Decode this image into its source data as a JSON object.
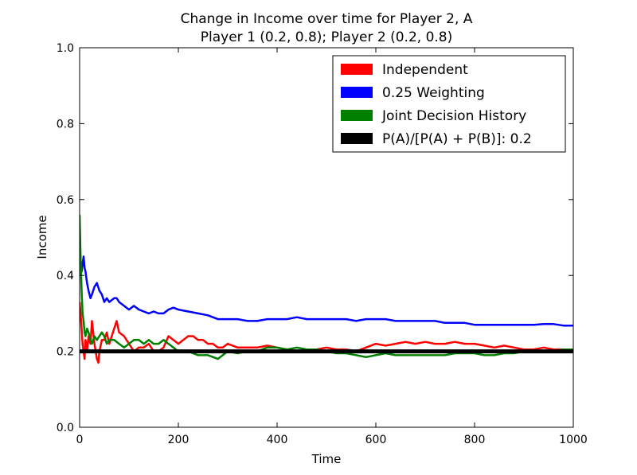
{
  "chart_data": {
    "type": "line",
    "title": "Change in Income over time for Player 2, A",
    "subtitle": "Player 1 (0.2, 0.8); Player 2 (0.2, 0.8)",
    "xlabel": "Time",
    "ylabel": "Income",
    "xlim": [
      0,
      1000
    ],
    "ylim": [
      0.0,
      1.0
    ],
    "xticks": [
      "0",
      "200",
      "400",
      "600",
      "800",
      "1000"
    ],
    "yticks": [
      "0.0",
      "0.2",
      "0.4",
      "0.6",
      "0.8",
      "1.0"
    ],
    "grid": false,
    "legend_position": "top-right",
    "series": [
      {
        "name": "Independent",
        "color": "#ff0000",
        "x": [
          0,
          2,
          4,
          6,
          8,
          10,
          12,
          15,
          18,
          22,
          25,
          30,
          35,
          38,
          40,
          45,
          50,
          55,
          60,
          70,
          75,
          80,
          90,
          100,
          110,
          120,
          130,
          140,
          150,
          160,
          170,
          180,
          190,
          200,
          210,
          220,
          230,
          240,
          250,
          260,
          270,
          280,
          290,
          300,
          320,
          340,
          360,
          380,
          400,
          420,
          440,
          460,
          480,
          500,
          520,
          540,
          560,
          580,
          600,
          620,
          640,
          660,
          680,
          700,
          720,
          740,
          760,
          780,
          800,
          820,
          840,
          860,
          880,
          900,
          920,
          940,
          960,
          980,
          1000
        ],
        "values": [
          0.33,
          0.3,
          0.26,
          0.22,
          0.2,
          0.18,
          0.23,
          0.2,
          0.24,
          0.22,
          0.28,
          0.22,
          0.18,
          0.17,
          0.2,
          0.23,
          0.23,
          0.25,
          0.22,
          0.26,
          0.28,
          0.25,
          0.24,
          0.22,
          0.2,
          0.21,
          0.21,
          0.22,
          0.2,
          0.2,
          0.21,
          0.24,
          0.23,
          0.22,
          0.23,
          0.24,
          0.24,
          0.23,
          0.23,
          0.22,
          0.22,
          0.21,
          0.21,
          0.22,
          0.21,
          0.21,
          0.21,
          0.215,
          0.21,
          0.205,
          0.2,
          0.2,
          0.205,
          0.21,
          0.205,
          0.205,
          0.2,
          0.21,
          0.22,
          0.215,
          0.22,
          0.225,
          0.22,
          0.225,
          0.22,
          0.22,
          0.225,
          0.22,
          0.22,
          0.215,
          0.21,
          0.215,
          0.21,
          0.205,
          0.205,
          0.21,
          0.205,
          0.205,
          0.205
        ]
      },
      {
        "name": "0.25 Weighting",
        "color": "#0000ff",
        "x": [
          0,
          2,
          4,
          6,
          8,
          10,
          12,
          15,
          18,
          22,
          25,
          30,
          35,
          40,
          45,
          50,
          55,
          60,
          70,
          75,
          80,
          90,
          100,
          110,
          120,
          130,
          140,
          150,
          160,
          170,
          180,
          190,
          200,
          220,
          240,
          260,
          280,
          300,
          320,
          340,
          360,
          380,
          400,
          420,
          440,
          460,
          480,
          500,
          520,
          540,
          560,
          580,
          600,
          620,
          640,
          660,
          680,
          700,
          720,
          740,
          760,
          780,
          800,
          820,
          840,
          860,
          880,
          900,
          920,
          940,
          960,
          980,
          1000
        ],
        "values": [
          0.5,
          0.44,
          0.41,
          0.43,
          0.45,
          0.42,
          0.41,
          0.38,
          0.36,
          0.34,
          0.35,
          0.37,
          0.38,
          0.36,
          0.35,
          0.33,
          0.34,
          0.33,
          0.34,
          0.34,
          0.33,
          0.32,
          0.31,
          0.32,
          0.31,
          0.305,
          0.3,
          0.305,
          0.3,
          0.3,
          0.31,
          0.315,
          0.31,
          0.305,
          0.3,
          0.295,
          0.285,
          0.285,
          0.285,
          0.28,
          0.28,
          0.285,
          0.285,
          0.285,
          0.29,
          0.285,
          0.285,
          0.285,
          0.285,
          0.285,
          0.28,
          0.285,
          0.285,
          0.285,
          0.28,
          0.28,
          0.28,
          0.28,
          0.28,
          0.275,
          0.275,
          0.275,
          0.27,
          0.27,
          0.27,
          0.27,
          0.27,
          0.27,
          0.27,
          0.272,
          0.272,
          0.268,
          0.268
        ]
      },
      {
        "name": "Joint Decision History",
        "color": "#008000",
        "x": [
          0,
          2,
          4,
          6,
          8,
          10,
          12,
          15,
          18,
          22,
          25,
          30,
          35,
          40,
          45,
          50,
          55,
          60,
          70,
          80,
          90,
          100,
          110,
          120,
          130,
          140,
          150,
          160,
          170,
          180,
          190,
          200,
          220,
          240,
          260,
          280,
          300,
          320,
          340,
          360,
          380,
          400,
          420,
          440,
          460,
          480,
          500,
          520,
          540,
          560,
          580,
          600,
          620,
          640,
          660,
          680,
          700,
          720,
          740,
          760,
          780,
          800,
          820,
          840,
          860,
          880,
          900,
          920,
          940,
          960,
          980,
          1000
        ],
        "values": [
          0.56,
          0.45,
          0.36,
          0.3,
          0.28,
          0.25,
          0.24,
          0.26,
          0.25,
          0.23,
          0.22,
          0.24,
          0.23,
          0.24,
          0.25,
          0.24,
          0.22,
          0.23,
          0.23,
          0.22,
          0.21,
          0.22,
          0.23,
          0.23,
          0.22,
          0.23,
          0.22,
          0.22,
          0.23,
          0.22,
          0.21,
          0.2,
          0.2,
          0.19,
          0.19,
          0.18,
          0.2,
          0.195,
          0.2,
          0.2,
          0.21,
          0.21,
          0.205,
          0.21,
          0.205,
          0.205,
          0.2,
          0.195,
          0.195,
          0.19,
          0.185,
          0.19,
          0.195,
          0.19,
          0.19,
          0.19,
          0.19,
          0.19,
          0.19,
          0.195,
          0.195,
          0.195,
          0.19,
          0.19,
          0.195,
          0.195,
          0.2,
          0.2,
          0.2,
          0.2,
          0.205,
          0.205
        ]
      },
      {
        "name": "P(A)/[P(A) + P(B)]: 0.2",
        "color": "#000000",
        "x": [
          0,
          1000
        ],
        "values": [
          0.2,
          0.2
        ]
      }
    ]
  }
}
